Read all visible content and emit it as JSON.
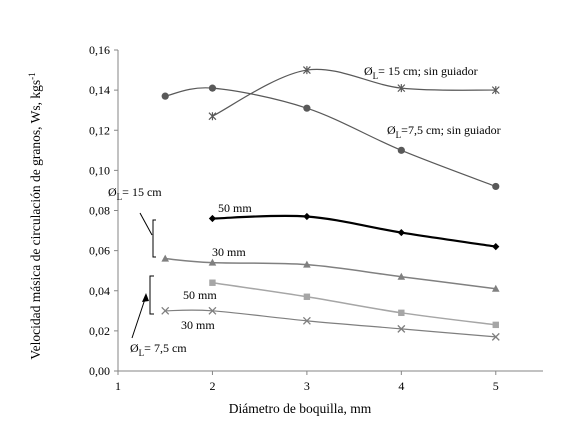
{
  "chart_data": {
    "type": "line",
    "xlabel": "Diámetro de boquilla, mm",
    "ylabel": "Velocidad másica de circulación de granos, Ws, kgs",
    "ylabel_sup": "-1",
    "xlim": [
      1,
      5.5
    ],
    "ylim": [
      0,
      0.16
    ],
    "x_ticks": [
      "1",
      "2",
      "3",
      "4",
      "5"
    ],
    "y_ticks": [
      "0,00",
      "0,02",
      "0,04",
      "0,06",
      "0,08",
      "0,10",
      "0,12",
      "0,14",
      "0,16"
    ],
    "grid": false,
    "series": [
      {
        "key": "s15_sin",
        "label": "15 cm;  sin guiador",
        "marker": "star",
        "color": "#595959",
        "stroke": 1.2,
        "points": [
          [
            2,
            0.127
          ],
          [
            3,
            0.15
          ],
          [
            4,
            0.141
          ],
          [
            5,
            0.14
          ]
        ]
      },
      {
        "key": "s75_sin",
        "label": "7,5 cm;  sin guiador",
        "marker": "circle",
        "color": "#595959",
        "stroke": 1.2,
        "points": [
          [
            1.5,
            0.137
          ],
          [
            2,
            0.141
          ],
          [
            3,
            0.131
          ],
          [
            4,
            0.11
          ],
          [
            5,
            0.092
          ]
        ]
      },
      {
        "key": "s15_50",
        "label": "50 mm",
        "marker": "diamond",
        "color": "#000000",
        "stroke": 2.2,
        "points": [
          [
            2,
            0.076
          ],
          [
            3,
            0.077
          ],
          [
            4,
            0.069
          ],
          [
            5,
            0.062
          ]
        ]
      },
      {
        "key": "s15_30",
        "label": "30 mm",
        "marker": "triangle",
        "color": "#808080",
        "stroke": 1.5,
        "points": [
          [
            1.5,
            0.056
          ],
          [
            2,
            0.054
          ],
          [
            3,
            0.053
          ],
          [
            4,
            0.047
          ],
          [
            5,
            0.041
          ]
        ]
      },
      {
        "key": "s75_50",
        "label": "50 mm",
        "marker": "square",
        "color": "#a6a6a6",
        "stroke": 1.5,
        "points": [
          [
            2,
            0.044
          ],
          [
            3,
            0.037
          ],
          [
            4,
            0.029
          ],
          [
            5,
            0.023
          ]
        ]
      },
      {
        "key": "s75_30",
        "label": "30 mm",
        "marker": "x",
        "color": "#7f7f7f",
        "stroke": 1.2,
        "points": [
          [
            1.5,
            0.03
          ],
          [
            2,
            0.03
          ],
          [
            3,
            0.025
          ],
          [
            4,
            0.021
          ],
          [
            5,
            0.017
          ]
        ]
      }
    ],
    "annotations": {
      "phi": "Ø",
      "phi_sub": "L",
      "group_15": "= 15 cm",
      "group_75": "= 7,5 cm"
    }
  }
}
